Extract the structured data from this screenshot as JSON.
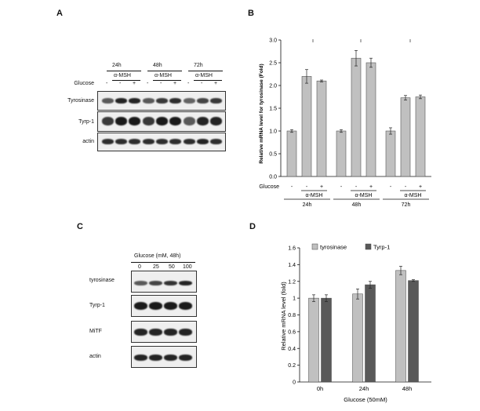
{
  "panels": [
    "A",
    "B",
    "C",
    "D"
  ],
  "panelA": {
    "times": [
      "24h",
      "48h",
      "72h"
    ],
    "treatment": "α-MSH",
    "glucose_label": "Glucose",
    "lane_signs": [
      "-",
      "-",
      "+",
      "-",
      "-",
      "+",
      "-",
      "-",
      "+"
    ],
    "rows": [
      "Tyrosinase",
      "Tyrp-1",
      "actin"
    ]
  },
  "panelC": {
    "header": "Glucose (mM, 48h)",
    "doses": [
      "0",
      "25",
      "50",
      "100"
    ],
    "rows": [
      "tyrosinase",
      "Tyrp-1",
      "MiTF",
      "actin"
    ]
  },
  "chart_data": [
    {
      "type": "bar",
      "panel": "B",
      "ylabel": "Relative mRNA level for tyrosinase (Fold)",
      "ylim": [
        0,
        3.0
      ],
      "yticks": [
        "0.0",
        "0.5",
        "1.0",
        "1.5",
        "2.0",
        "2.5",
        "3.0"
      ],
      "categories": [
        "24h-ctrl",
        "24h-MSH",
        "24h-MSH+Glc",
        "48h-ctrl",
        "48h-MSH",
        "48h-MSH+Glc",
        "72h-ctrl",
        "72h-MSH",
        "72h-MSH+Glc"
      ],
      "values": [
        1.0,
        2.2,
        2.1,
        1.0,
        2.6,
        2.5,
        1.0,
        1.73,
        1.75
      ],
      "errors": [
        0.03,
        0.15,
        0.02,
        0.03,
        0.17,
        0.1,
        0.07,
        0.05,
        0.04
      ],
      "glucose_label": "Glucose",
      "glucose_signs": [
        "-",
        "-",
        "+",
        "-",
        "-",
        "+",
        "-",
        "-",
        "+"
      ],
      "treatment": "α-MSH",
      "groups": [
        "24h",
        "48h",
        "72h"
      ],
      "grid": false,
      "bar_color": "#c0c0c0"
    },
    {
      "type": "bar",
      "panel": "D",
      "ylabel": "Relative mRNA level (fold)",
      "xlabel": "Glucose (50mM)",
      "ylim": [
        0,
        1.6
      ],
      "yticks": [
        "0",
        "0.2",
        "0.4",
        "0.6",
        "0.8",
        "1",
        "1.2",
        "1.4",
        "1.6"
      ],
      "categories": [
        "0h",
        "24h",
        "48h"
      ],
      "series": [
        {
          "name": "tyrosinase",
          "values": [
            1.0,
            1.05,
            1.33
          ],
          "errors": [
            0.04,
            0.06,
            0.05
          ],
          "color": "#c0c0c0"
        },
        {
          "name": "Tyrp-1",
          "values": [
            1.0,
            1.16,
            1.21
          ],
          "errors": [
            0.04,
            0.04,
            0.01
          ],
          "color": "#595959"
        }
      ],
      "legend": "top",
      "grid": false
    }
  ]
}
